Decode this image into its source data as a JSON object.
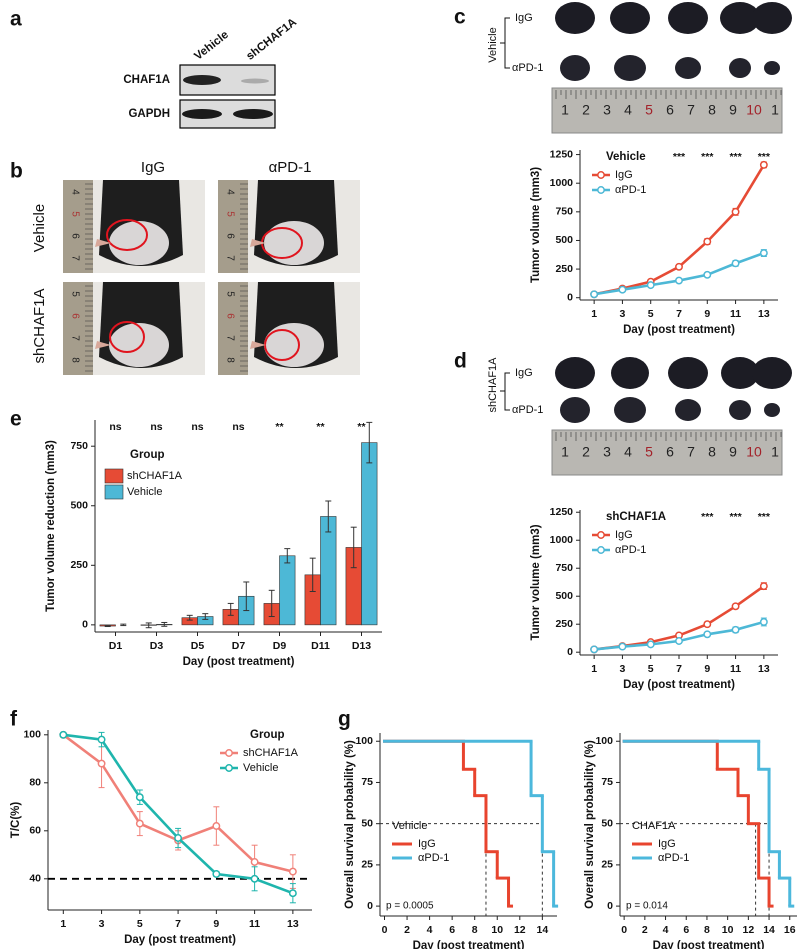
{
  "panel_labels": [
    "a",
    "b",
    "c",
    "d",
    "e",
    "f",
    "g"
  ],
  "blot": {
    "lanes": [
      "Vehicle",
      "shCHAF1A"
    ],
    "rows": [
      "CHAF1A",
      "GAPDH"
    ]
  },
  "mouse_photos": {
    "columns": [
      "IgG",
      "αPD-1"
    ],
    "rows": [
      "Vehicle",
      "shCHAF1A"
    ],
    "ruler_labels": [
      [
        "4",
        "5",
        "6",
        "7"
      ],
      [
        "4",
        "5",
        "6",
        "7"
      ],
      [
        "5",
        "6",
        "7",
        "8"
      ],
      [
        "5",
        "6",
        "7",
        "8"
      ]
    ]
  },
  "tumor_photos": [
    {
      "group": "Vehicle",
      "rows": [
        "IgG",
        "αPD-1"
      ]
    },
    {
      "group": "shCHAF1A",
      "rows": [
        "IgG",
        "αPD-1"
      ]
    }
  ],
  "ruler_labels": [
    "1",
    "2",
    "3",
    "4",
    "5",
    "6",
    "7",
    "8",
    "9",
    "10",
    "1"
  ],
  "chart_data": [
    {
      "type": "line",
      "title": "Vehicle",
      "legend": "upper left",
      "x": [
        1,
        3,
        5,
        7,
        9,
        11,
        13
      ],
      "xlim": [
        0,
        14
      ],
      "xticks": [
        1,
        3,
        5,
        7,
        9,
        11,
        13
      ],
      "ylim": [
        -20,
        1290
      ],
      "yticks": [
        0,
        250,
        500,
        750,
        1000,
        1250
      ],
      "xlabel": "Day (post treatment)",
      "ylabel": "Tumor volume (mm3)",
      "series": [
        {
          "name": "IgG",
          "color": "#e64b35",
          "values": [
            30,
            80,
            140,
            270,
            490,
            750,
            1160
          ],
          "errors": [
            4,
            8,
            10,
            20,
            25,
            30,
            25
          ]
        },
        {
          "name": "αPD-1",
          "color": "#4db8d6",
          "values": [
            30,
            70,
            110,
            150,
            200,
            300,
            390
          ],
          "errors": [
            3,
            6,
            8,
            12,
            12,
            25,
            30
          ]
        }
      ],
      "annotations": [
        {
          "x": 7,
          "text": "***"
        },
        {
          "x": 9,
          "text": "***"
        },
        {
          "x": 11,
          "text": "***"
        },
        {
          "x": 13,
          "text": "***"
        }
      ]
    },
    {
      "type": "line",
      "title": "shCHAF1A",
      "legend": "upper left",
      "x": [
        1,
        3,
        5,
        7,
        9,
        11,
        13
      ],
      "xlim": [
        0,
        14
      ],
      "xticks": [
        1,
        3,
        5,
        7,
        9,
        11,
        13
      ],
      "ylim": [
        -25,
        1270
      ],
      "yticks": [
        0,
        250,
        500,
        750,
        1000,
        1250
      ],
      "xlabel": "Day (post treatment)",
      "ylabel": "Tumor volume (mm3)",
      "series": [
        {
          "name": "IgG",
          "color": "#e64b35",
          "values": [
            25,
            55,
            90,
            150,
            250,
            410,
            590
          ],
          "errors": [
            3,
            5,
            8,
            12,
            15,
            20,
            30
          ]
        },
        {
          "name": "αPD-1",
          "color": "#4db8d6",
          "values": [
            25,
            50,
            70,
            100,
            160,
            200,
            270
          ],
          "errors": [
            3,
            5,
            6,
            10,
            15,
            25,
            35
          ]
        }
      ],
      "annotations": [
        {
          "x": 9,
          "text": "***"
        },
        {
          "x": 11,
          "text": "***"
        },
        {
          "x": 13,
          "text": "***"
        }
      ]
    },
    {
      "type": "bar",
      "legend_title": "Group",
      "categories": [
        "D1",
        "D3",
        "D5",
        "D7",
        "D9",
        "D11",
        "D13"
      ],
      "ylim": [
        -30,
        860
      ],
      "yticks": [
        0,
        250,
        500,
        750
      ],
      "xlabel": "Day (post treatment)",
      "ylabel": "Tumor volume reduction (mm3)",
      "series": [
        {
          "name": "shCHAF1A",
          "color": "#e64b35",
          "values": [
            -5,
            -2,
            30,
            65,
            90,
            210,
            325
          ],
          "errors": [
            2,
            10,
            10,
            25,
            55,
            70,
            85
          ]
        },
        {
          "name": "Vehicle",
          "color": "#4db8d6",
          "values": [
            0,
            2,
            35,
            120,
            290,
            455,
            765
          ],
          "errors": [
            3,
            8,
            12,
            60,
            30,
            65,
            85
          ]
        }
      ],
      "annotations": [
        "ns",
        "ns",
        "ns",
        "ns",
        "**",
        "**",
        "**"
      ]
    },
    {
      "type": "line",
      "legend_title": "Group",
      "legend": "upper right",
      "x": [
        1,
        3,
        5,
        7,
        9,
        11,
        13
      ],
      "xlim": [
        0.2,
        14
      ],
      "xticks": [
        1,
        3,
        5,
        7,
        9,
        11,
        13
      ],
      "ylim": [
        27,
        102
      ],
      "yticks": [
        40,
        60,
        80,
        100
      ],
      "hline": 40,
      "xlabel": "Day (post treatment)",
      "ylabel": "T/C(%)",
      "series": [
        {
          "name": "shCHAF1A",
          "color": "#f08078",
          "values": [
            100,
            88,
            63,
            56,
            62,
            47,
            43
          ],
          "errors": [
            0,
            10,
            5,
            4,
            8,
            7,
            7
          ]
        },
        {
          "name": "Vehicle",
          "color": "#1fb5ad",
          "values": [
            100,
            98,
            74,
            57,
            42,
            40,
            34
          ],
          "errors": [
            0,
            3,
            3,
            4,
            1,
            5,
            4
          ]
        }
      ]
    },
    {
      "type": "step",
      "title": "Vehicle",
      "p_value": "p = 0.0005",
      "xlim": [
        -0.4,
        15.3
      ],
      "xticks": [
        0,
        2,
        4,
        6,
        8,
        10,
        12,
        14
      ],
      "ylim": [
        -6,
        105
      ],
      "yticks": [
        0,
        25,
        50,
        75,
        100
      ],
      "xlabel": "Day (post treatment)",
      "ylabel": "Overall survival probability (%)",
      "median_lines": {
        "y": 50,
        "x": [
          9,
          14
        ]
      },
      "series": [
        {
          "name": "IgG",
          "color": "#e8442e",
          "x": [
            0,
            7,
            8,
            9,
            10,
            11
          ],
          "values": [
            100,
            83,
            67,
            33,
            17,
            0
          ]
        },
        {
          "name": "αPD-1",
          "color": "#4cb8dc",
          "x": [
            0,
            13,
            14,
            15
          ],
          "values": [
            100,
            67,
            33,
            0
          ]
        }
      ]
    },
    {
      "type": "step",
      "title": "CHAF1A",
      "p_value": "p = 0.014",
      "xlim": [
        -0.4,
        16.7
      ],
      "xticks": [
        0,
        2,
        4,
        6,
        8,
        10,
        12,
        14,
        16
      ],
      "ylim": [
        -6,
        105
      ],
      "yticks": [
        0,
        25,
        50,
        75,
        100
      ],
      "xlabel": "Day (post treatment)",
      "ylabel": "Overall survival probability (%)",
      "median_lines": {
        "y": 50,
        "x": [
          12.7,
          14
        ]
      },
      "series": [
        {
          "name": "IgG",
          "color": "#e8442e",
          "x": [
            0,
            9,
            11,
            12,
            13,
            14
          ],
          "values": [
            100,
            83,
            67,
            50,
            17,
            0
          ]
        },
        {
          "name": "αPD-1",
          "color": "#4cb8dc",
          "x": [
            0,
            13,
            14,
            15,
            16
          ],
          "values": [
            100,
            83,
            33,
            17,
            0
          ]
        }
      ]
    }
  ]
}
